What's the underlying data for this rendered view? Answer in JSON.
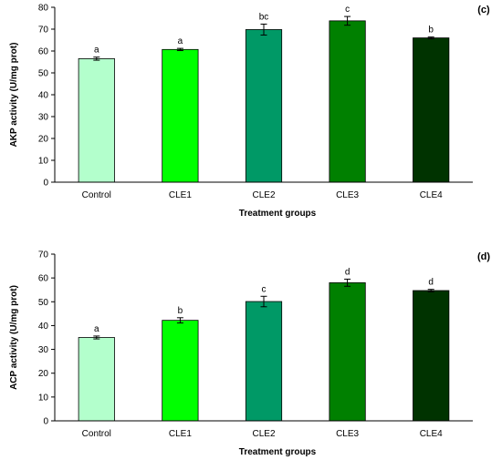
{
  "chart_data": [
    {
      "panel": "(c)",
      "type": "bar",
      "categories": [
        "Control",
        "CLE1",
        "CLE2",
        "CLE3",
        "CLE4"
      ],
      "values": [
        56.5,
        60.7,
        69.8,
        73.8,
        66.0
      ],
      "errors": [
        0.7,
        0.5,
        2.5,
        2.0,
        0.4
      ],
      "significance": [
        "a",
        "a",
        "bc",
        "c",
        "b"
      ],
      "colors": [
        "#b3ffcc",
        "#00ff00",
        "#009966",
        "#008000",
        "#003300"
      ],
      "xlabel": "Treatment groups",
      "ylabel": "AKP activity (U/mg prot)",
      "ylim": [
        0,
        80
      ],
      "yticks": [
        0,
        10,
        20,
        30,
        40,
        50,
        60,
        70,
        80
      ],
      "grid": false
    },
    {
      "panel": "(d)",
      "type": "bar",
      "categories": [
        "Control",
        "CLE1",
        "CLE2",
        "CLE3",
        "CLE4"
      ],
      "values": [
        35.0,
        42.2,
        50.1,
        58.0,
        54.7
      ],
      "errors": [
        0.6,
        1.1,
        2.2,
        1.5,
        0.5
      ],
      "significance": [
        "a",
        "b",
        "c",
        "d",
        "d"
      ],
      "colors": [
        "#b3ffcc",
        "#00ff00",
        "#009966",
        "#008000",
        "#003300"
      ],
      "xlabel": "Treatment groups",
      "ylabel": "ACP activity (U/mg prot)",
      "ylim": [
        0,
        70
      ],
      "yticks": [
        0,
        10,
        20,
        30,
        40,
        50,
        60,
        70
      ],
      "grid": false
    }
  ]
}
